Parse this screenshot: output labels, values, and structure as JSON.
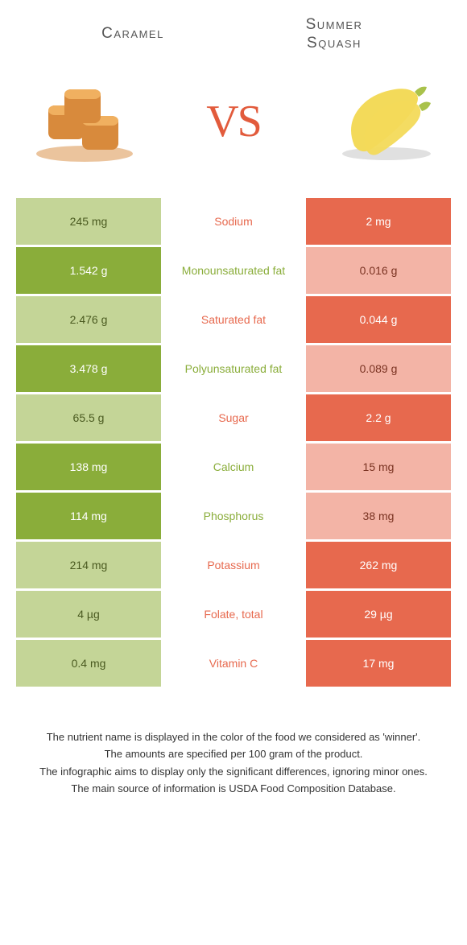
{
  "header": {
    "left_title": "Caramel",
    "right_title": "Summer Squash",
    "vs_label": "VS"
  },
  "colors": {
    "left_full": "#8aad3a",
    "left_dim": "#c4d597",
    "right_full": "#e7694e",
    "right_dim": "#f3b4a6",
    "vs_color": "#e25b3c"
  },
  "rows": [
    {
      "nutrient": "Sodium",
      "left": "245 mg",
      "right": "2 mg",
      "winner": "right"
    },
    {
      "nutrient": "Monounsaturated fat",
      "left": "1.542 g",
      "right": "0.016 g",
      "winner": "left"
    },
    {
      "nutrient": "Saturated fat",
      "left": "2.476 g",
      "right": "0.044 g",
      "winner": "right"
    },
    {
      "nutrient": "Polyunsaturated fat",
      "left": "3.478 g",
      "right": "0.089 g",
      "winner": "left"
    },
    {
      "nutrient": "Sugar",
      "left": "65.5 g",
      "right": "2.2 g",
      "winner": "right"
    },
    {
      "nutrient": "Calcium",
      "left": "138 mg",
      "right": "15 mg",
      "winner": "left"
    },
    {
      "nutrient": "Phosphorus",
      "left": "114 mg",
      "right": "38 mg",
      "winner": "left"
    },
    {
      "nutrient": "Potassium",
      "left": "214 mg",
      "right": "262 mg",
      "winner": "right"
    },
    {
      "nutrient": "Folate, total",
      "left": "4 µg",
      "right": "29 µg",
      "winner": "right"
    },
    {
      "nutrient": "Vitamin C",
      "left": "0.4 mg",
      "right": "17 mg",
      "winner": "right"
    }
  ],
  "footer": {
    "line1": "The nutrient name is displayed in the color of the food we considered as 'winner'.",
    "line2": "The amounts are specified per 100 gram of the product.",
    "line3": "The infographic aims to display only the significant differences, ignoring minor ones.",
    "line4": "The main source of information is USDA Food Composition Database."
  }
}
